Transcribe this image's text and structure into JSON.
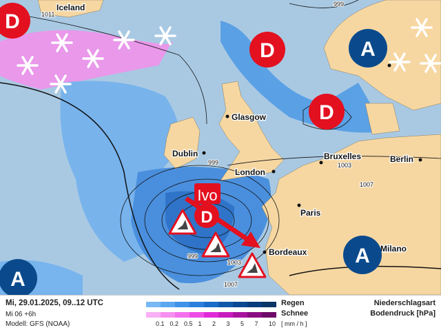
{
  "map": {
    "cities": [
      {
        "name": "Iceland"
      },
      {
        "name": "Glasgow"
      },
      {
        "name": "Dublin"
      },
      {
        "name": "London"
      },
      {
        "name": "Bruxelles"
      },
      {
        "name": "Berlin"
      },
      {
        "name": "Paris"
      },
      {
        "name": "Bordeaux"
      },
      {
        "name": "Milano"
      }
    ],
    "isobar_labels": [
      "1011",
      "999",
      "999",
      "1003",
      "1007",
      "999",
      "1003",
      "1007"
    ],
    "storm_name": "Ivo",
    "low_symbol": "D",
    "high_symbol": "A",
    "colors": {
      "ocean": "#a9c9e3",
      "land": "#f6d7a2",
      "low": "#e3101f",
      "high": "#0a4a8c",
      "rain": "#3a8ee0",
      "snow": "#f070e8"
    }
  },
  "legend": {
    "date": "Mi, 29.01.2025, 09..12 UTC",
    "run": "Mi 06 +6h",
    "model": "Modell: GFS (NOAA)",
    "rain_label": "Regen",
    "snow_label": "Schnee",
    "unit": "[ mm / h ]",
    "ticks": [
      "0.1",
      "0.2",
      "0.5",
      "1",
      "2",
      "3",
      "5",
      "7",
      "10"
    ],
    "rain_colors": [
      "#78b8f4",
      "#5aa6f0",
      "#3e92e8",
      "#2a7fdc",
      "#1a6cc8",
      "#1258aa",
      "#0c4892",
      "#083c7c",
      "#0a3566"
    ],
    "snow_colors": [
      "#f8b0f4",
      "#f690f0",
      "#f470ec",
      "#ee4ce6",
      "#e02ad8",
      "#c81cbe",
      "#a8149e",
      "#8a0e82",
      "#6e0a68"
    ],
    "title1": "Niederschlagsart",
    "title2": "Bodendruck [hPa]"
  }
}
